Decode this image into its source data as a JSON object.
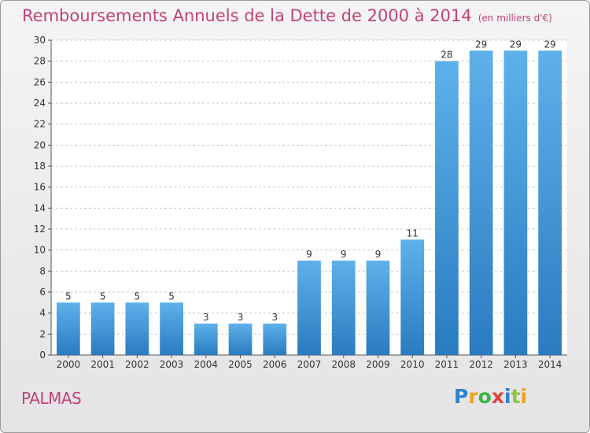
{
  "title": {
    "main": "Remboursements Annuels de la Dette de 2000 à 2014",
    "unit": "(en milliers d'€)"
  },
  "commune": "PALMAS",
  "logo": {
    "text": "Proxiti"
  },
  "colors": {
    "title": "#c0437a",
    "bar_light": "#5eb1ea",
    "bar_dark": "#2a7bc0",
    "grid": "#c8c8c8"
  },
  "chart_data": {
    "type": "bar",
    "categories": [
      "2000",
      "2001",
      "2002",
      "2003",
      "2004",
      "2005",
      "2006",
      "2007",
      "2008",
      "2009",
      "2010",
      "2011",
      "2012",
      "2013",
      "2014"
    ],
    "values": [
      5,
      5,
      5,
      5,
      3,
      3,
      3,
      9,
      9,
      9,
      11,
      28,
      29,
      29,
      29
    ],
    "data_labels": [
      "5",
      "5",
      "5",
      "5",
      "3",
      "3",
      "3",
      "9",
      "9",
      "9",
      "11",
      "28",
      "29",
      "29",
      "29"
    ],
    "ylim": [
      0,
      30
    ],
    "yticks": [
      0,
      2,
      4,
      6,
      8,
      10,
      12,
      14,
      16,
      18,
      20,
      22,
      24,
      26,
      28,
      30
    ],
    "grid": true,
    "xlabel": "",
    "ylabel": ""
  }
}
